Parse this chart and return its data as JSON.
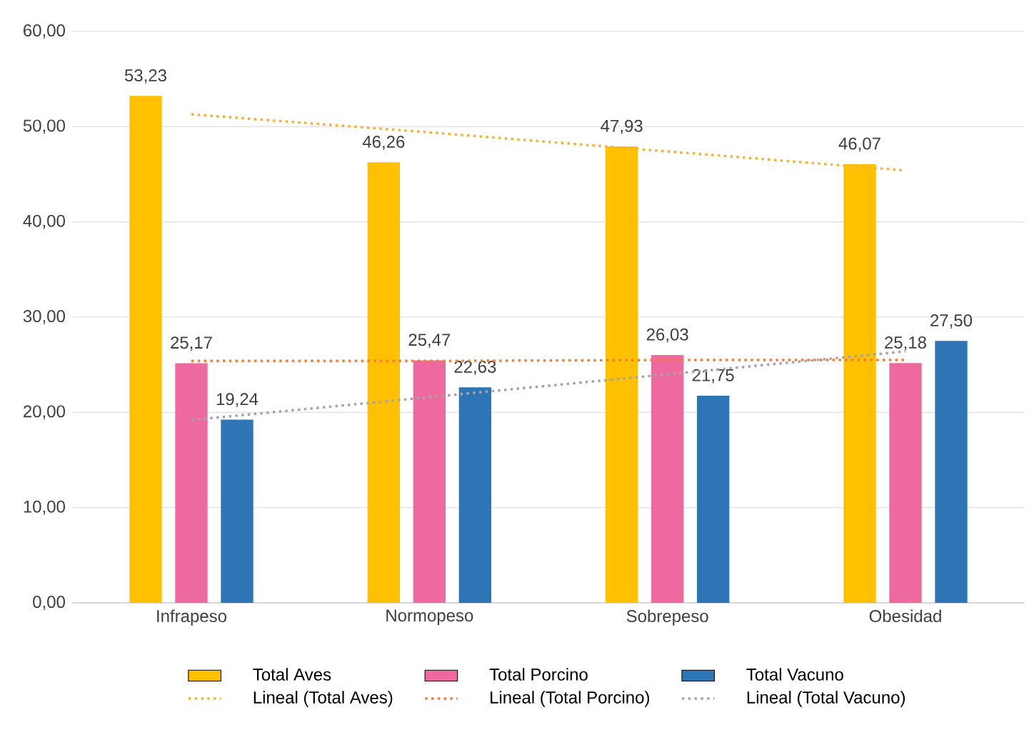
{
  "chart_data": {
    "type": "bar",
    "categories": [
      "Infrapeso",
      "Normopeso",
      "Sobrepeso",
      "Obesidad"
    ],
    "series": [
      {
        "name": "Total Aves",
        "color": "#ffc000",
        "values": [
          53.23,
          46.26,
          47.93,
          46.07
        ],
        "value_labels": [
          "53,23",
          "46,26",
          "47,93",
          "46,07"
        ]
      },
      {
        "name": "Total Porcino",
        "color": "#ee6a9e",
        "values": [
          25.17,
          25.47,
          26.03,
          25.18
        ],
        "value_labels": [
          "25,17",
          "25,47",
          "26,03",
          "25,18"
        ]
      },
      {
        "name": "Total Vacuno",
        "color": "#2e75b6",
        "values": [
          19.24,
          22.63,
          21.75,
          27.5
        ],
        "value_labels": [
          "19,24",
          "22,63",
          "21,75",
          "27,50"
        ]
      },
      {
        "name": "Lineal  (Total Aves)",
        "type": "line",
        "line_style": "dotted",
        "color": "#f5b335",
        "values": [
          51.3,
          49.4,
          47.4,
          45.4
        ]
      },
      {
        "name": "Lineal  (Total Porcino)",
        "type": "line",
        "line_style": "dotted",
        "color": "#f07f3c",
        "values": [
          25.4,
          25.4,
          25.5,
          25.5
        ]
      },
      {
        "name": "Lineal  (Total Vacuno)",
        "type": "line",
        "line_style": "dotted",
        "color": "#a5a5a5",
        "values": [
          19.2,
          21.6,
          24.0,
          26.4
        ]
      }
    ],
    "ylim": [
      0,
      60
    ],
    "yticks": [
      {
        "value": 0,
        "label": "0,00"
      },
      {
        "value": 10,
        "label": "10,00"
      },
      {
        "value": 20,
        "label": "20,00"
      },
      {
        "value": 30,
        "label": "30,00"
      },
      {
        "value": 40,
        "label": "40,00"
      },
      {
        "value": 50,
        "label": "50,00"
      },
      {
        "value": 60,
        "label": "60,00"
      }
    ],
    "grid": "y",
    "legend": "bottom"
  }
}
